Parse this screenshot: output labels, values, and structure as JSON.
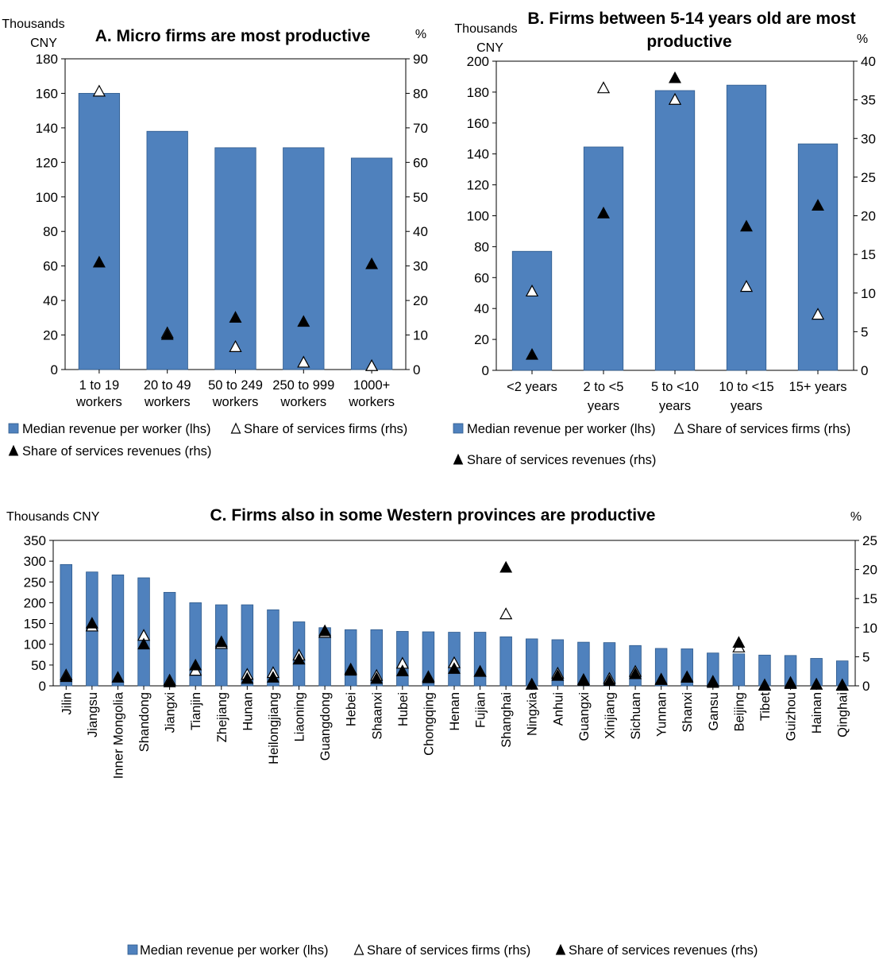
{
  "charts": {
    "a": {
      "title": "A. Micro firms are most productive",
      "lhs_unit_lines": [
        "Thousands",
        "CNY"
      ],
      "rhs_unit": "%",
      "left_ticks": [
        "0",
        "20",
        "40",
        "60",
        "80",
        "100",
        "120",
        "140",
        "160",
        "180"
      ],
      "right_ticks": [
        "0",
        "10",
        "20",
        "30",
        "40",
        "50",
        "60",
        "70",
        "80",
        "90"
      ],
      "category_lines": [
        [
          "1 to 19",
          "workers"
        ],
        [
          "20 to 49",
          "workers"
        ],
        [
          "50 to 249",
          "workers"
        ],
        [
          "250 to 999",
          "workers"
        ],
        [
          "1000+",
          "workers"
        ]
      ],
      "legend": {
        "bars": "Median revenue per worker (lhs)",
        "open": "Share of services firms (rhs)",
        "filled": "Share of services revenues (rhs)"
      }
    },
    "b": {
      "title_lines": [
        "B. Firms between 5-14 years old are most",
        "productive"
      ],
      "lhs_unit_lines": [
        "Thousands",
        "CNY"
      ],
      "rhs_unit": "%",
      "left_ticks": [
        "0",
        "20",
        "40",
        "60",
        "80",
        "100",
        "120",
        "140",
        "160",
        "180",
        "200"
      ],
      "right_ticks": [
        "0",
        "5",
        "10",
        "15",
        "20",
        "25",
        "30",
        "35",
        "40"
      ],
      "category_lines": [
        [
          "<2 years"
        ],
        [
          "2 to <5",
          "years"
        ],
        [
          "5 to <10",
          "years"
        ],
        [
          "10 to <15",
          "years"
        ],
        [
          "15+ years"
        ]
      ],
      "legend": {
        "bars": "Median revenue per worker (lhs)",
        "open": "Share of services firms (rhs)",
        "filled": "Share of services revenues (rhs)"
      }
    },
    "c": {
      "title": "C. Firms also in some Western provinces are productive",
      "lhs_unit": "Thousands CNY",
      "rhs_unit": "%",
      "left_ticks": [
        "0",
        "50",
        "100",
        "150",
        "200",
        "250",
        "300",
        "350"
      ],
      "right_ticks": [
        "0",
        "5",
        "10",
        "15",
        "20",
        "25"
      ],
      "legend": {
        "bars": "Median revenue per worker (lhs)",
        "open": "Share of services firms (rhs)",
        "filled": "Share of services revenues (rhs)"
      }
    }
  },
  "colors": {
    "bar": "#4f81bd",
    "bar_edge": "#2e5a8c"
  },
  "chart_data": [
    {
      "type": "bar",
      "categories": [
        "1 to 19 workers",
        "20 to 49 workers",
        "50 to 249 workers",
        "250 to 999 workers",
        "1000+ workers"
      ],
      "series": [
        {
          "name": "Median revenue per worker (lhs)",
          "axis": "left",
          "values": [
            160,
            138,
            128.5,
            128.5,
            122.5
          ]
        },
        {
          "name": "Share of services firms (rhs)",
          "axis": "right",
          "marker": "open-triangle",
          "values": [
            80.5,
            10.5,
            6.5,
            2,
            1
          ]
        },
        {
          "name": "Share of services revenues (rhs)",
          "axis": "right",
          "marker": "filled-triangle",
          "values": [
            31,
            10,
            15,
            13.8,
            30.5
          ]
        }
      ],
      "ylim_left": [
        0,
        180
      ],
      "ylim_right": [
        0,
        90
      ]
    },
    {
      "type": "bar",
      "categories": [
        "<2 years",
        "2 to <5 years",
        "5 to <10 years",
        "10 to <15 years",
        "15+ years"
      ],
      "series": [
        {
          "name": "Median revenue per worker (lhs)",
          "axis": "left",
          "values": [
            77,
            144.5,
            181,
            184.5,
            146.5
          ]
        },
        {
          "name": "Share of services firms (rhs)",
          "axis": "right",
          "marker": "open-triangle",
          "values": [
            10.2,
            36.5,
            35,
            10.8,
            7.2
          ]
        },
        {
          "name": "Share of services revenues (rhs)",
          "axis": "right",
          "marker": "filled-triangle",
          "values": [
            2,
            20.3,
            37.8,
            18.6,
            21.3
          ]
        }
      ],
      "ylim_left": [
        0,
        200
      ],
      "ylim_right": [
        0,
        40
      ]
    },
    {
      "type": "bar",
      "categories": [
        "Jilin",
        "Jiangsu",
        "Inner Mongolia",
        "Shandong",
        "Jiangxi",
        "Tianjin",
        "Zhejiang",
        "Hunan",
        "Heilongjiang",
        "Liaoning",
        "Guangdong",
        "Hebei",
        "Shaanxi",
        "Hubei",
        "Chongqing",
        "Henan",
        "Fujian",
        "Shanghai",
        "Ningxia",
        "Anhui",
        "Guangxi",
        "Xinjiang",
        "Sichuan",
        "Yunnan",
        "Shanxi",
        "Gansu",
        "Beijing",
        "Tibet",
        "Guizhou",
        "Hainan",
        "Qinghai"
      ],
      "series": [
        {
          "name": "Median revenue per worker (lhs)",
          "axis": "left",
          "values": [
            292,
            274,
            267,
            260,
            225,
            200,
            195,
            195,
            183,
            154,
            140,
            135,
            135,
            131,
            130,
            129,
            129,
            118,
            113,
            111,
            105,
            104,
            97,
            90,
            89,
            79,
            77,
            74,
            73,
            66,
            60
          ]
        },
        {
          "name": "Share of services firms (rhs)",
          "axis": "right",
          "marker": "open-triangle",
          "values": [
            1.8,
            10.2,
            null,
            8.6,
            0.9,
            2.6,
            7.2,
            1.9,
            2.2,
            5.2,
            9.1,
            2.8,
            1.7,
            3.8,
            1.5,
            3.9,
            2.4,
            12.3,
            0.2,
            2.1,
            1,
            1.2,
            2.4,
            1,
            1.4,
            0.7,
            6.6,
            0.1,
            0.5,
            0.2,
            0.1
          ]
        },
        {
          "name": "Share of services revenues (rhs)",
          "axis": "right",
          "marker": "filled-triangle",
          "values": [
            1.5,
            10.7,
            1.4,
            7.1,
            0.6,
            3.5,
            7.5,
            1.2,
            1.4,
            4.5,
            9.4,
            2.6,
            1.2,
            2.5,
            1.3,
            2.9,
            2.4,
            20.3,
            0.2,
            1.7,
            0.8,
            0.8,
            2,
            1.1,
            1.5,
            0.5,
            7.4,
            0,
            0.3,
            0.2,
            0
          ]
        }
      ],
      "ylim_left": [
        0,
        350
      ],
      "ylim_right": [
        0,
        25
      ]
    }
  ]
}
